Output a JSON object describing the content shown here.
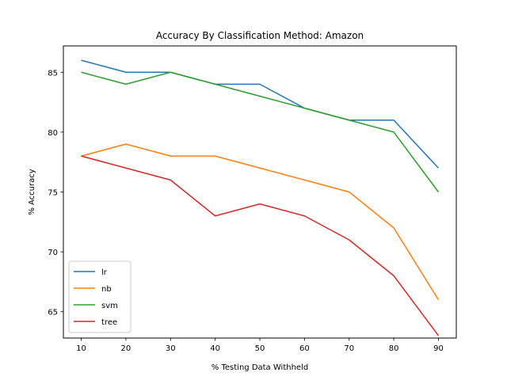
{
  "chart_data": {
    "type": "line",
    "title": "Accuracy By Classification Method: Amazon",
    "xlabel": "% Testing Data Withheld",
    "ylabel": "% Accuracy",
    "x": [
      10,
      20,
      30,
      40,
      50,
      60,
      70,
      80,
      90
    ],
    "xlim": [
      6,
      94
    ],
    "ylim": [
      62.8,
      87.2
    ],
    "xticks": [
      10,
      20,
      30,
      40,
      50,
      60,
      70,
      80,
      90
    ],
    "yticks": [
      65,
      70,
      75,
      80,
      85
    ],
    "grid": false,
    "legend_position": "lower-left",
    "series": [
      {
        "name": "lr",
        "color": "#1f77b4",
        "values": [
          86,
          85,
          85,
          84,
          84,
          82,
          81,
          81,
          77
        ]
      },
      {
        "name": "nb",
        "color": "#ff7f0e",
        "values": [
          78,
          79,
          78,
          78,
          77,
          76,
          75,
          72,
          66
        ]
      },
      {
        "name": "svm",
        "color": "#2ca02c",
        "values": [
          85,
          84,
          85,
          84,
          83,
          82,
          81,
          80,
          75
        ]
      },
      {
        "name": "tree",
        "color": "#d62728",
        "values": [
          78,
          77,
          76,
          73,
          74,
          73,
          71,
          68,
          63
        ]
      }
    ]
  }
}
